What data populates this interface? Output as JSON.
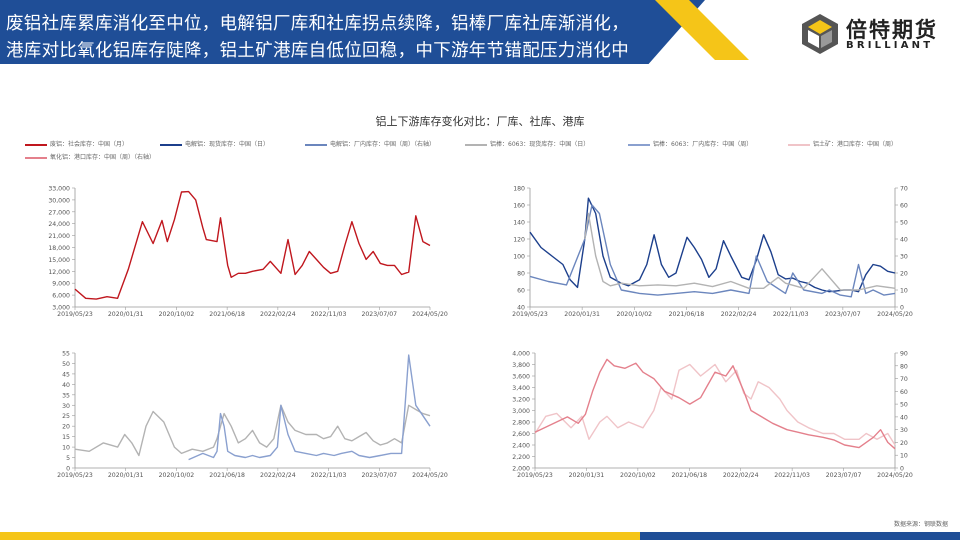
{
  "header": {
    "line1": "废铝社库累库消化至中位，电解铝厂库和社库拐点续降，铝棒厂库社库渐消化，",
    "line2": "港库对比氧化铝库存陡降，铝土矿港库自低位回稳，中下游年节错配压力消化中",
    "brand_cn": "倍特期货",
    "brand_en": "BRILLIANT",
    "colors": {
      "banner": "#1f4e97",
      "accent": "#f5c518"
    }
  },
  "chart_title": "铝上下游库存变化对比：厂库、社库、港库",
  "legend": [
    {
      "label": "废铝：社会库存：中国（月）",
      "color": "#c0171e"
    },
    {
      "label": "电解铝：现货库存：中国（日）",
      "color": "#1c3f8c"
    },
    {
      "label": "电解铝：厂内库存：中国（周）（右轴）",
      "color": "#6b86bd"
    },
    {
      "label": "铝棒：6063：现货库存：中国（日）",
      "color": "#b3b3b3"
    },
    {
      "label": "铝棒：6063：厂内库存：中国（周）",
      "color": "#8aa0cf"
    },
    {
      "label": "铝土矿：港口库存：中国（周）",
      "color": "#f0c4c8"
    },
    {
      "label": "氧化铝：港口库存：中国（周）（右轴）",
      "color": "#e4808c"
    }
  ],
  "footer": {
    "source": "数据来源：钢联数据"
  },
  "chart_data": [
    {
      "type": "line",
      "x_ticks": [
        "2019/05/23",
        "2020/01/31",
        "2020/10/02",
        "2021/06/18",
        "2022/02/24",
        "2022/11/03",
        "2023/07/07",
        "2024/05/20"
      ],
      "y_ticks": [
        "3,000",
        "6,000",
        "9,000",
        "12,000",
        "15,000",
        "18,000",
        "21,000",
        "24,000",
        "27,000",
        "30,000",
        "33,000"
      ],
      "ylim": [
        3000,
        33000
      ],
      "series": [
        {
          "name": "废铝：社会库存：中国（月）",
          "color": "#c0171e",
          "x": [
            0,
            0.03,
            0.06,
            0.09,
            0.12,
            0.15,
            0.19,
            0.22,
            0.245,
            0.26,
            0.28,
            0.3,
            0.32,
            0.34,
            0.36,
            0.37,
            0.4,
            0.41,
            0.43,
            0.44,
            0.46,
            0.48,
            0.5,
            0.53,
            0.55,
            0.58,
            0.6,
            0.62,
            0.64,
            0.66,
            0.68,
            0.7,
            0.72,
            0.74,
            0.76,
            0.78,
            0.8,
            0.82,
            0.84,
            0.86,
            0.88,
            0.9,
            0.92,
            0.94,
            0.96,
            0.98,
            1.0
          ],
          "y": [
            7500,
            5200,
            5000,
            5600,
            5200,
            12500,
            24500,
            19000,
            24800,
            19500,
            25000,
            32000,
            32100,
            30000,
            23000,
            20000,
            19500,
            25500,
            13500,
            10500,
            11500,
            11500,
            12000,
            12500,
            14500,
            11500,
            20000,
            11200,
            13500,
            17000,
            15000,
            13000,
            11500,
            12000,
            18500,
            24500,
            19000,
            15000,
            17000,
            14000,
            13500,
            13500,
            11200,
            11800,
            26000,
            19500,
            18500
          ]
        }
      ]
    },
    {
      "type": "line",
      "x_ticks": [
        "2019/05/23",
        "2020/01/31",
        "2020/10/02",
        "2021/06/18",
        "2022/02/24",
        "2022/11/03",
        "2023/07/07",
        "2024/05/20"
      ],
      "y_ticks": [
        "40",
        "60",
        "80",
        "100",
        "120",
        "140",
        "160",
        "180"
      ],
      "y2_ticks": [
        "0",
        "10",
        "20",
        "30",
        "40",
        "50",
        "60",
        "70"
      ],
      "ylim": [
        40,
        180
      ],
      "y2lim": [
        0,
        70
      ],
      "series": [
        {
          "name": "电解铝：现货库存：中国（日）",
          "color": "#1c3f8c",
          "x": [
            0,
            0.03,
            0.06,
            0.09,
            0.11,
            0.13,
            0.15,
            0.16,
            0.18,
            0.2,
            0.22,
            0.25,
            0.27,
            0.3,
            0.32,
            0.34,
            0.36,
            0.38,
            0.4,
            0.43,
            0.45,
            0.47,
            0.49,
            0.51,
            0.53,
            0.55,
            0.58,
            0.6,
            0.62,
            0.64,
            0.66,
            0.68,
            0.7,
            0.72,
            0.74,
            0.76,
            0.78,
            0.8,
            0.82,
            0.84,
            0.86,
            0.88,
            0.9,
            0.92,
            0.94,
            0.96,
            0.98,
            1.0
          ],
          "y": [
            128,
            110,
            100,
            90,
            72,
            63,
            120,
            168,
            150,
            100,
            75,
            68,
            65,
            72,
            90,
            125,
            90,
            75,
            80,
            122,
            110,
            96,
            75,
            85,
            118,
            100,
            75,
            72,
            95,
            125,
            105,
            78,
            73,
            74,
            70,
            68,
            63,
            60,
            58,
            59,
            60,
            60,
            58,
            78,
            90,
            88,
            82,
            80
          ]
        },
        {
          "name": "电解铝：厂内库存：中国（周）（右轴）",
          "color": "#6b86bd",
          "axis": "right",
          "x": [
            0,
            0.05,
            0.1,
            0.15,
            0.17,
            0.19,
            0.22,
            0.25,
            0.3,
            0.35,
            0.4,
            0.45,
            0.5,
            0.55,
            0.6,
            0.62,
            0.65,
            0.7,
            0.72,
            0.75,
            0.8,
            0.82,
            0.85,
            0.88,
            0.9,
            0.92,
            0.94,
            0.97,
            1.0
          ],
          "y": [
            18,
            15,
            13,
            40,
            60,
            55,
            25,
            10,
            8,
            7,
            8,
            9,
            8,
            10,
            8,
            30,
            15,
            8,
            20,
            10,
            8,
            10,
            7,
            6,
            25,
            8,
            10,
            7,
            8
          ]
        },
        {
          "name": "铝棒：6063：现货库存：中国（日）",
          "color": "#b3b3b3",
          "x": [
            0.15,
            0.16,
            0.18,
            0.2,
            0.22,
            0.25,
            0.3,
            0.35,
            0.4,
            0.45,
            0.5,
            0.55,
            0.6,
            0.64,
            0.68,
            0.7,
            0.75,
            0.8,
            0.85,
            0.9,
            0.95,
            1.0
          ],
          "y": [
            120,
            150,
            100,
            70,
            65,
            68,
            65,
            66,
            65,
            68,
            64,
            70,
            62,
            62,
            75,
            68,
            62,
            85,
            60,
            60,
            65,
            62
          ]
        }
      ]
    },
    {
      "type": "line",
      "x_ticks": [
        "2019/05/23",
        "2020/01/31",
        "2020/10/02",
        "2021/06/18",
        "2022/02/24",
        "2022/11/03",
        "2023/07/07",
        "2024/05/20"
      ],
      "y_ticks": [
        "0",
        "5",
        "10",
        "15",
        "20",
        "25",
        "30",
        "35",
        "40",
        "45",
        "50",
        "55"
      ],
      "ylim": [
        0,
        55
      ],
      "series": [
        {
          "name": "铝棒：6063：现货库存：中国（日）",
          "color": "#b3b3b3",
          "x": [
            0,
            0.04,
            0.08,
            0.12,
            0.14,
            0.16,
            0.18,
            0.2,
            0.22,
            0.25,
            0.28,
            0.3,
            0.33,
            0.36,
            0.39,
            0.4,
            0.42,
            0.44,
            0.46,
            0.48,
            0.5,
            0.52,
            0.54,
            0.56,
            0.58,
            0.6,
            0.62,
            0.65,
            0.68,
            0.7,
            0.72,
            0.74,
            0.76,
            0.78,
            0.8,
            0.82,
            0.84,
            0.86,
            0.88,
            0.9,
            0.92,
            0.94,
            0.96,
            0.98,
            1.0
          ],
          "y": [
            9,
            8,
            12,
            10,
            16,
            12,
            6,
            20,
            27,
            22,
            10,
            7,
            9,
            8,
            10,
            14,
            26,
            20,
            12,
            14,
            18,
            12,
            10,
            14,
            30,
            22,
            18,
            16,
            16,
            14,
            15,
            20,
            14,
            13,
            15,
            17,
            13,
            11,
            12,
            14,
            12,
            30,
            28,
            26,
            25
          ]
        },
        {
          "name": "铝棒：6063：厂内库存：中国（周）",
          "color": "#8aa0cf",
          "x": [
            0.32,
            0.36,
            0.39,
            0.4,
            0.41,
            0.42,
            0.43,
            0.45,
            0.48,
            0.5,
            0.52,
            0.55,
            0.57,
            0.58,
            0.6,
            0.62,
            0.65,
            0.68,
            0.7,
            0.73,
            0.75,
            0.78,
            0.8,
            0.83,
            0.86,
            0.89,
            0.92,
            0.94,
            0.96,
            0.98,
            1.0
          ],
          "y": [
            4,
            7,
            5,
            8,
            26,
            20,
            8,
            6,
            5,
            6,
            5,
            6,
            10,
            30,
            16,
            8,
            7,
            6,
            7,
            6,
            7,
            8,
            6,
            5,
            6,
            7,
            7,
            54,
            30,
            25,
            20
          ]
        }
      ]
    },
    {
      "type": "line",
      "x_ticks": [
        "2019/05/23",
        "2020/01/31",
        "2020/10/02",
        "2021/06/18",
        "2022/02/24",
        "2022/11/03",
        "2023/07/07",
        "2024/05/20"
      ],
      "y_ticks": [
        "2,000",
        "2,200",
        "2,400",
        "2,600",
        "2,800",
        "3,000",
        "3,200",
        "3,400",
        "3,600",
        "3,800",
        "4,000"
      ],
      "y2_ticks": [
        "0",
        "10",
        "20",
        "30",
        "40",
        "50",
        "60",
        "70",
        "80",
        "90"
      ],
      "ylim": [
        2000,
        4000
      ],
      "y2lim": [
        0,
        90
      ],
      "series": [
        {
          "name": "铝土矿：港口库存：中国（周）",
          "color": "#f0c4c8",
          "x": [
            0,
            0.03,
            0.06,
            0.1,
            0.13,
            0.15,
            0.18,
            0.2,
            0.23,
            0.26,
            0.3,
            0.33,
            0.35,
            0.38,
            0.4,
            0.43,
            0.46,
            0.48,
            0.5,
            0.53,
            0.56,
            0.58,
            0.6,
            0.62,
            0.65,
            0.68,
            0.7,
            0.73,
            0.76,
            0.8,
            0.83,
            0.86,
            0.9,
            0.92,
            0.95,
            0.98,
            1.0
          ],
          "y": [
            2600,
            2900,
            2950,
            2700,
            2900,
            2500,
            2800,
            2900,
            2700,
            2800,
            2700,
            3000,
            3400,
            3200,
            3700,
            3800,
            3600,
            3700,
            3800,
            3500,
            3700,
            3300,
            3200,
            3500,
            3400,
            3200,
            3000,
            2800,
            2700,
            2600,
            2600,
            2500,
            2500,
            2600,
            2500,
            2600,
            2400
          ]
        },
        {
          "name": "氧化铝：港口库存：中国（周）（右轴）",
          "color": "#e4808c",
          "axis": "right",
          "x": [
            0,
            0.03,
            0.06,
            0.09,
            0.12,
            0.14,
            0.16,
            0.18,
            0.2,
            0.22,
            0.25,
            0.28,
            0.3,
            0.33,
            0.36,
            0.4,
            0.43,
            0.46,
            0.48,
            0.5,
            0.53,
            0.55,
            0.58,
            0.6,
            0.63,
            0.66,
            0.7,
            0.73,
            0.76,
            0.8,
            0.83,
            0.86,
            0.9,
            0.92,
            0.94,
            0.96,
            0.98,
            1.0
          ],
          "y": [
            28,
            32,
            36,
            40,
            35,
            42,
            60,
            75,
            85,
            80,
            78,
            82,
            75,
            70,
            60,
            55,
            50,
            55,
            65,
            75,
            72,
            80,
            60,
            45,
            40,
            35,
            30,
            28,
            26,
            24,
            22,
            18,
            16,
            20,
            24,
            30,
            20,
            15
          ]
        }
      ]
    }
  ]
}
